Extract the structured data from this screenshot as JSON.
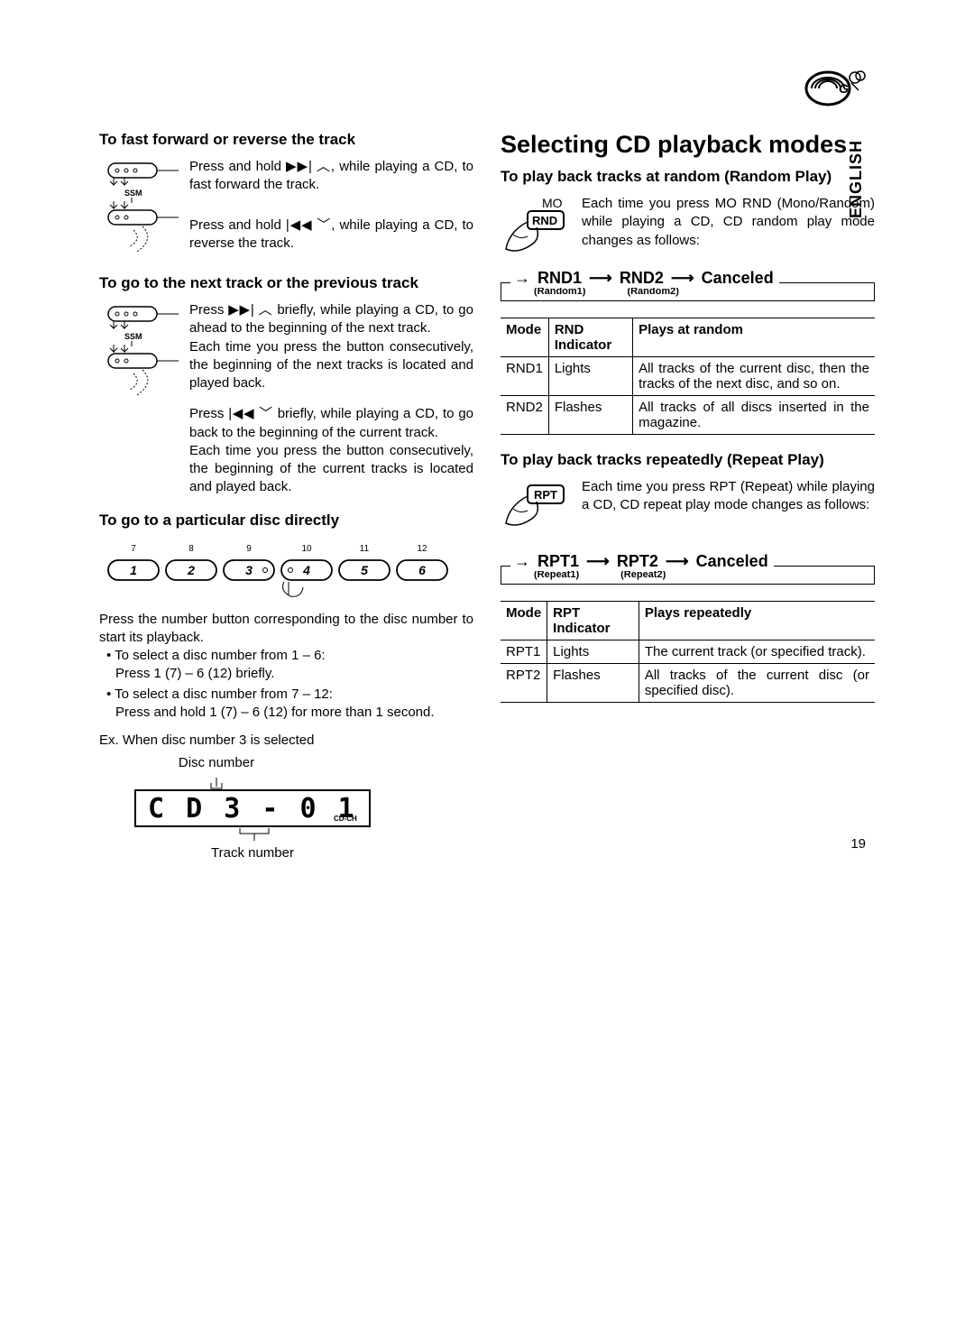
{
  "page_number": "19",
  "language_tab": "ENGLISH",
  "left": {
    "h1": "To fast forward or reverse the track",
    "ff_text_a": "Press and hold ",
    "ff_text_b": ", while playing a CD, to fast forward the track.",
    "rev_text_a": "Press and hold ",
    "rev_text_b": ", while playing a CD, to reverse the track.",
    "h2": "To go to the next track or the previous track",
    "next_text_a": "Press ",
    "next_text_b": " briefly, while playing a CD, to go ahead to the beginning of the next track.",
    "next_text_c": "Each time you press the button consecutively, the beginning of the next tracks is located and played back.",
    "prev_text_a": "Press ",
    "prev_text_b": " briefly, while playing a CD, to go back to the beginning of the current track.",
    "prev_text_c": "Each time you press the button consecutively, the beginning of the current tracks is located and played back.",
    "h3": "To go to a particular disc directly",
    "disc_intro": "Press the number button corresponding to the disc number to start its playback.",
    "disc_li1a": "To select a disc number from 1 – 6:",
    "disc_li1b": "Press 1 (7) – 6 (12) briefly.",
    "disc_li2a": "To select a disc number from 7 – 12:",
    "disc_li2b": "Press and hold 1 (7) – 6 (12) for more than 1 second.",
    "disc_ex": "Ex. When disc number 3 is selected",
    "disc_num_label": "Disc number",
    "track_num_label": "Track number",
    "number_top": [
      "7",
      "8",
      "9",
      "10",
      "11",
      "12"
    ],
    "number_bottom": [
      "1",
      "2",
      "3",
      "4",
      "5",
      "6"
    ],
    "display_text": "C D  3 - 0 1",
    "display_badge": "CD-CH",
    "ssm_label": "SSM"
  },
  "right": {
    "main": "Selecting CD playback modes",
    "h1": "To play back tracks at random (Random Play)",
    "rnd_btn_top": "MO",
    "rnd_btn_label": "RND",
    "rnd_text": "Each time you press MO RND (Mono/Random) while playing a CD, CD random play mode changes as follows:",
    "rnd_cycle": [
      "RND1",
      "RND2",
      "Canceled"
    ],
    "rnd_cycle_sub": [
      "(Random1)",
      "(Random2)"
    ],
    "rnd_table": {
      "headers": [
        "Mode",
        "RND Indicator",
        "Plays at random"
      ],
      "rows": [
        [
          "RND1",
          "Lights",
          "All tracks of the current disc, then the tracks of the next disc, and so on."
        ],
        [
          "RND2",
          "Flashes",
          "All tracks of all discs inserted in the magazine."
        ]
      ]
    },
    "h2": "To play back tracks repeatedly (Repeat Play)",
    "rpt_btn_label": "RPT",
    "rpt_text": "Each time you press RPT (Repeat) while playing a CD, CD repeat play mode changes as follows:",
    "rpt_cycle": [
      "RPT1",
      "RPT2",
      "Canceled"
    ],
    "rpt_cycle_sub": [
      "(Repeat1)",
      "(Repeat2)"
    ],
    "rpt_table": {
      "headers": [
        "Mode",
        "RPT Indicator",
        "Plays repeatedly"
      ],
      "rows": [
        [
          "RPT1",
          "Lights",
          "The current track (or specified track)."
        ],
        [
          "RPT2",
          "Flashes",
          "All tracks of the current disc (or specified disc)."
        ]
      ]
    }
  },
  "colors": {
    "text": "#000000",
    "background": "#ffffff",
    "border": "#000000"
  }
}
